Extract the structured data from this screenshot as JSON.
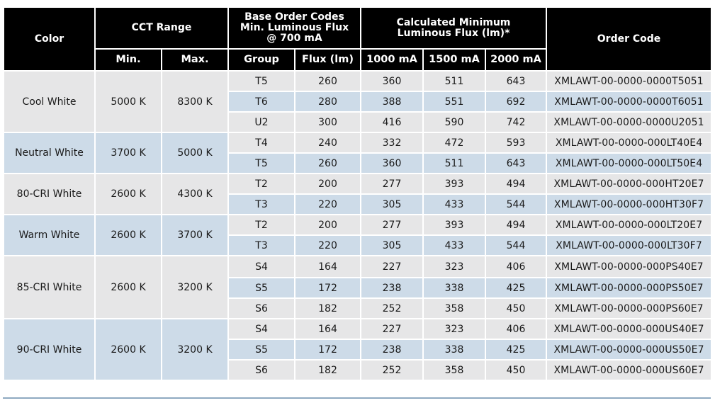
{
  "headers": {
    "color": "Color",
    "cct_range": "CCT Range",
    "base_order_codes": "Base Order Codes Min. Luminous Flux @ 700 mA",
    "calculated_min": "Calculated Minimum Luminous Flux (lm)*",
    "order_code": "Order Code",
    "min": "Min.",
    "max": "Max.",
    "group": "Group",
    "flux": "Flux (lm)",
    "c1000": "1000 mA",
    "c1500": "1500 mA",
    "c2000": "2000 mA"
  },
  "groups": [
    {
      "color": "Cool White",
      "min": "5000 K",
      "max": "8300 K",
      "rows": [
        {
          "group": "T5",
          "flux": "260",
          "c1000": "360",
          "c1500": "511",
          "c2000": "643",
          "code": "XMLAWT-00-0000-0000T5051"
        },
        {
          "group": "T6",
          "flux": "280",
          "c1000": "388",
          "c1500": "551",
          "c2000": "692",
          "code": "XMLAWT-00-0000-0000T6051"
        },
        {
          "group": "U2",
          "flux": "300",
          "c1000": "416",
          "c1500": "590",
          "c2000": "742",
          "code": "XMLAWT-00-0000-0000U2051"
        }
      ]
    },
    {
      "color": "Neutral White",
      "min": "3700 K",
      "max": "5000 K",
      "rows": [
        {
          "group": "T4",
          "flux": "240",
          "c1000": "332",
          "c1500": "472",
          "c2000": "593",
          "code": "XMLAWT-00-0000-000LT40E4"
        },
        {
          "group": "T5",
          "flux": "260",
          "c1000": "360",
          "c1500": "511",
          "c2000": "643",
          "code": "XMLAWT-00-0000-000LT50E4"
        }
      ]
    },
    {
      "color": "80-CRI White",
      "min": "2600 K",
      "max": "4300 K",
      "rows": [
        {
          "group": "T2",
          "flux": "200",
          "c1000": "277",
          "c1500": "393",
          "c2000": "494",
          "code": "XMLAWT-00-0000-000HT20E7"
        },
        {
          "group": "T3",
          "flux": "220",
          "c1000": "305",
          "c1500": "433",
          "c2000": "544",
          "code": "XMLAWT-00-0000-000HT30F7"
        }
      ]
    },
    {
      "color": "Warm White",
      "min": "2600 K",
      "max": "3700 K",
      "rows": [
        {
          "group": "T2",
          "flux": "200",
          "c1000": "277",
          "c1500": "393",
          "c2000": "494",
          "code": "XMLAWT-00-0000-000LT20E7"
        },
        {
          "group": "T3",
          "flux": "220",
          "c1000": "305",
          "c1500": "433",
          "c2000": "544",
          "code": "XMLAWT-00-0000-000LT30F7"
        }
      ]
    },
    {
      "color": "85-CRI White",
      "min": "2600 K",
      "max": "3200 K",
      "rows": [
        {
          "group": "S4",
          "flux": "164",
          "c1000": "227",
          "c1500": "323",
          "c2000": "406",
          "code": "XMLAWT-00-0000-000PS40E7"
        },
        {
          "group": "S5",
          "flux": "172",
          "c1000": "238",
          "c1500": "338",
          "c2000": "425",
          "code": "XMLAWT-00-0000-000PS50E7"
        },
        {
          "group": "S6",
          "flux": "182",
          "c1000": "252",
          "c1500": "358",
          "c2000": "450",
          "code": "XMLAWT-00-0000-000PS60E7"
        }
      ]
    },
    {
      "color": "90-CRI White",
      "min": "2600 K",
      "max": "3200 K",
      "rows": [
        {
          "group": "S4",
          "flux": "164",
          "c1000": "227",
          "c1500": "323",
          "c2000": "406",
          "code": "XMLAWT-00-0000-000US40E7"
        },
        {
          "group": "S5",
          "flux": "172",
          "c1000": "238",
          "c1500": "338",
          "c2000": "425",
          "code": "XMLAWT-00-0000-000US50E7"
        },
        {
          "group": "S6",
          "flux": "182",
          "c1000": "252",
          "c1500": "358",
          "c2000": "450",
          "code": "XMLAWT-00-0000-000US60E7"
        }
      ]
    }
  ]
}
